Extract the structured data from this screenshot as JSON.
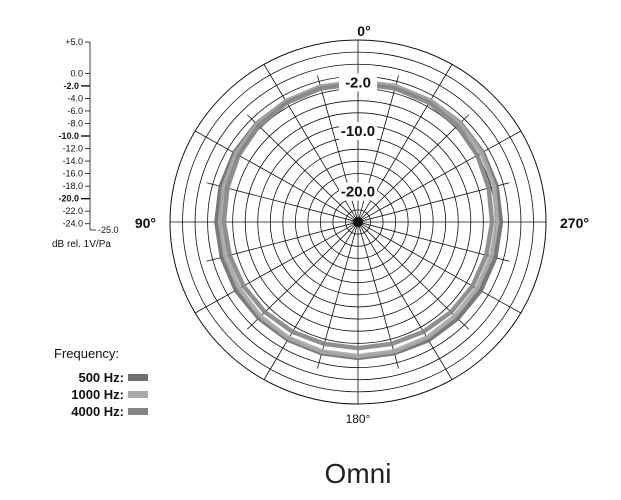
{
  "chart_data": {
    "type": "polar",
    "title": "Omni",
    "units_label": "dB rel. 1V/Pa",
    "radial_scale": {
      "ticks": [
        {
          "label": "+5.0",
          "value": 5,
          "major": false
        },
        {
          "label": "0.0",
          "value": 0,
          "major": false
        },
        {
          "label": "-2.0",
          "value": -2,
          "major": true
        },
        {
          "label": "-4.0",
          "value": -4,
          "major": false
        },
        {
          "label": "-6.0",
          "value": -6,
          "major": false
        },
        {
          "label": "-8.0",
          "value": -8,
          "major": false
        },
        {
          "label": "-10.0",
          "value": -10,
          "major": true
        },
        {
          "label": "-12.0",
          "value": -12,
          "major": false
        },
        {
          "label": "-14.0",
          "value": -14,
          "major": false
        },
        {
          "label": "-16.0",
          "value": -16,
          "major": false
        },
        {
          "label": "-18.0",
          "value": -18,
          "major": false
        },
        {
          "label": "-20.0",
          "value": -20,
          "major": true
        },
        {
          "label": "-22.0",
          "value": -22,
          "major": false
        },
        {
          "label": "-24.0",
          "value": -24,
          "major": false
        }
      ],
      "min_label": "-25.0",
      "range": [
        -25,
        5
      ]
    },
    "ring_labels": [
      {
        "label": "-2.0",
        "value": -2
      },
      {
        "label": "-10.0",
        "value": -10
      },
      {
        "label": "-20.0",
        "value": -20
      }
    ],
    "angle_labels": [
      {
        "label": "0°",
        "angle": 0
      },
      {
        "label": "90°",
        "angle": 90
      },
      {
        "label": "180°",
        "angle": 180
      },
      {
        "label": "270°",
        "angle": 270
      }
    ],
    "legend": {
      "title": "Frequency:",
      "placement": "bottom-left"
    },
    "series": [
      {
        "name": "500 Hz:",
        "color": "#6e6e6e",
        "values_db": [
          -1.9,
          -1.9,
          -2.0,
          -2.1,
          -2.2,
          -2.3,
          -2.4,
          -2.5,
          -2.5,
          -2.6,
          -2.6,
          -2.6,
          -2.6,
          -2.6,
          -2.5,
          -2.5,
          -2.4,
          -2.3,
          -2.2,
          -2.1,
          -2.0,
          -1.9,
          -1.9,
          -1.9
        ]
      },
      {
        "name": "1000 Hz:",
        "color": "#a8a8a8",
        "values_db": [
          -1.8,
          -1.9,
          -2.0,
          -2.2,
          -2.5,
          -2.8,
          -3.0,
          -3.1,
          -3.1,
          -3.0,
          -2.9,
          -2.9,
          -2.9,
          -2.9,
          -3.0,
          -3.1,
          -3.1,
          -3.0,
          -2.8,
          -2.5,
          -2.2,
          -2.0,
          -1.9,
          -1.8
        ]
      },
      {
        "name": "4000 Hz:",
        "color": "#858585",
        "values_db": [
          -2.2,
          -2.2,
          -2.3,
          -2.6,
          -3.0,
          -3.4,
          -3.6,
          -3.8,
          -3.9,
          -4.0,
          -4.1,
          -4.2,
          -4.2,
          -4.2,
          -4.1,
          -4.0,
          -3.9,
          -3.8,
          -3.6,
          -3.4,
          -3.0,
          -2.6,
          -2.3,
          -2.2
        ]
      }
    ]
  }
}
